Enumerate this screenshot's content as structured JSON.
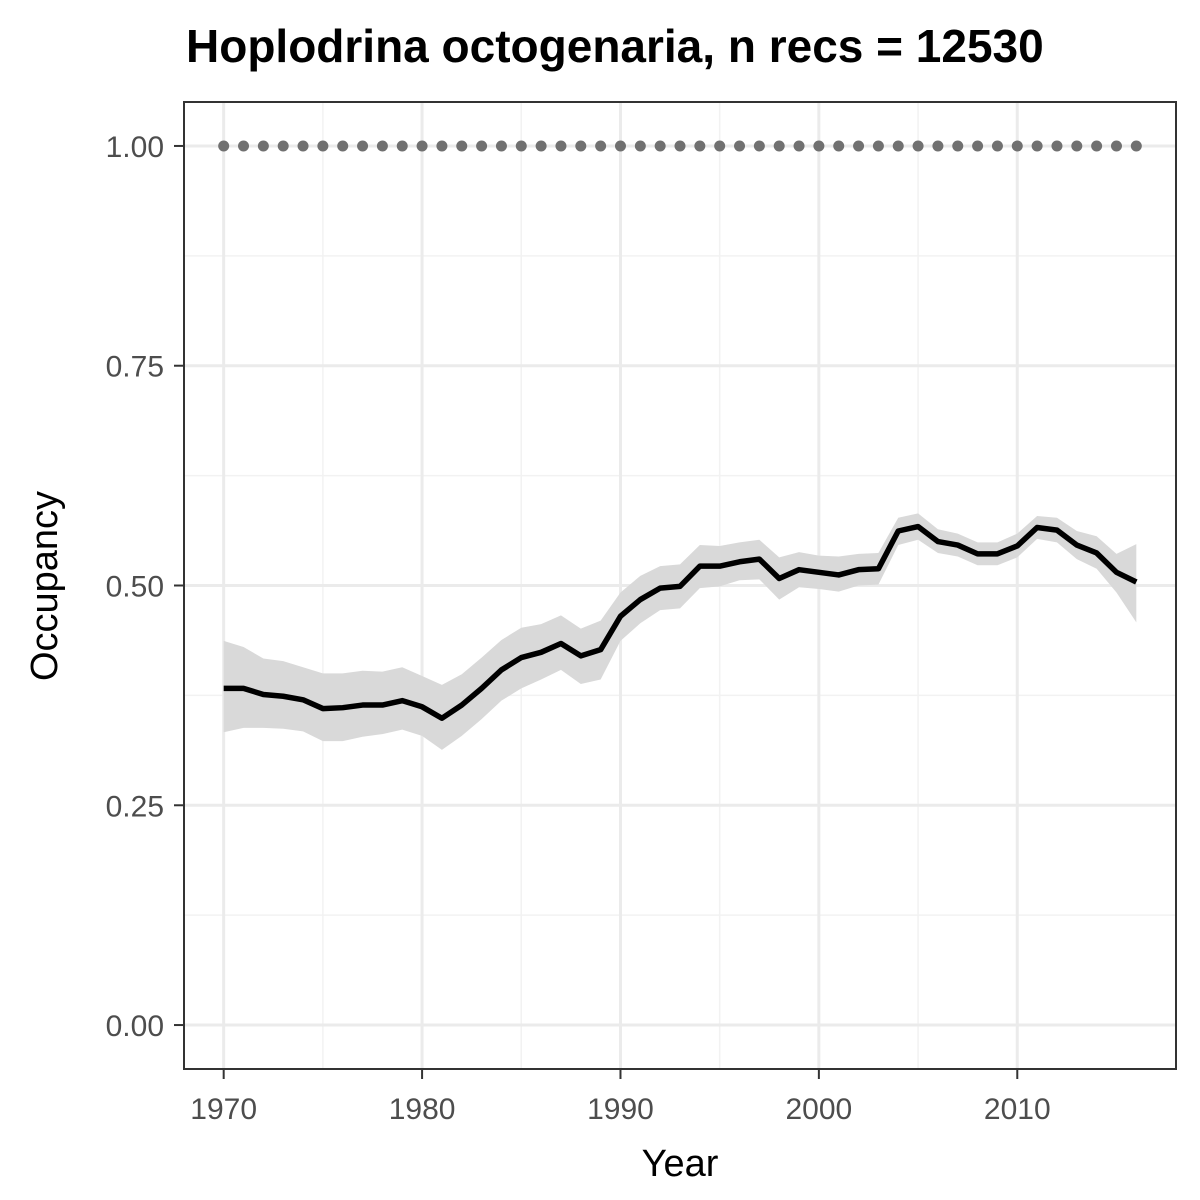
{
  "chart_data": {
    "type": "line",
    "title": "Hoplodrina octogenaria, n recs = 12530",
    "xlabel": "Year",
    "ylabel": "Occupancy",
    "xlim": [
      1968,
      2018
    ],
    "ylim": [
      -0.05,
      1.05
    ],
    "x_ticks": [
      1970,
      1980,
      1990,
      2000,
      2010
    ],
    "x_tick_labels": [
      "1970",
      "1980",
      "1990",
      "2000",
      "2010"
    ],
    "y_ticks": [
      0,
      0.25,
      0.5,
      0.75,
      1.0
    ],
    "y_tick_labels": [
      "0.00",
      "0.25",
      "0.50",
      "0.75",
      "1.00"
    ],
    "grid": true,
    "x": [
      1970,
      1971,
      1972,
      1973,
      1974,
      1975,
      1976,
      1977,
      1978,
      1979,
      1980,
      1981,
      1982,
      1983,
      1984,
      1985,
      1986,
      1987,
      1988,
      1989,
      1990,
      1991,
      1992,
      1993,
      1994,
      1995,
      1996,
      1997,
      1998,
      1999,
      2000,
      2001,
      2002,
      2003,
      2004,
      2005,
      2006,
      2007,
      2008,
      2009,
      2010,
      2011,
      2012,
      2013,
      2014,
      2015,
      2016
    ],
    "series": [
      {
        "values": [
          0.383,
          0.383,
          0.376,
          0.374,
          0.37,
          0.36,
          0.361,
          0.364,
          0.364,
          0.369,
          0.362,
          0.349,
          0.364,
          0.383,
          0.404,
          0.418,
          0.424,
          0.434,
          0.42,
          0.427,
          0.465,
          0.484,
          0.497,
          0.499,
          0.522,
          0.522,
          0.527,
          0.53,
          0.508,
          0.518,
          0.515,
          0.512,
          0.518,
          0.519,
          0.562,
          0.567,
          0.55,
          0.546,
          0.536,
          0.536,
          0.545,
          0.566,
          0.563,
          0.546,
          0.537,
          0.515,
          0.504
        ],
        "lower": [
          0.333,
          0.338,
          0.338,
          0.337,
          0.334,
          0.323,
          0.323,
          0.328,
          0.331,
          0.336,
          0.329,
          0.313,
          0.329,
          0.348,
          0.369,
          0.383,
          0.393,
          0.404,
          0.388,
          0.393,
          0.437,
          0.457,
          0.472,
          0.474,
          0.497,
          0.499,
          0.506,
          0.507,
          0.484,
          0.498,
          0.496,
          0.493,
          0.5,
          0.501,
          0.546,
          0.552,
          0.537,
          0.533,
          0.523,
          0.523,
          0.532,
          0.553,
          0.549,
          0.53,
          0.519,
          0.492,
          0.458
        ],
        "upper": [
          0.437,
          0.43,
          0.417,
          0.414,
          0.407,
          0.4,
          0.4,
          0.403,
          0.402,
          0.407,
          0.397,
          0.387,
          0.399,
          0.418,
          0.438,
          0.452,
          0.456,
          0.466,
          0.451,
          0.46,
          0.492,
          0.511,
          0.522,
          0.524,
          0.546,
          0.545,
          0.549,
          0.552,
          0.532,
          0.538,
          0.534,
          0.533,
          0.536,
          0.537,
          0.577,
          0.582,
          0.564,
          0.559,
          0.549,
          0.549,
          0.559,
          0.579,
          0.577,
          0.562,
          0.556,
          0.536,
          0.547
        ]
      },
      {
        "style": "dotted",
        "values": [
          1,
          1,
          1,
          1,
          1,
          1,
          1,
          1,
          1,
          1,
          1,
          1,
          1,
          1,
          1,
          1,
          1,
          1,
          1,
          1,
          1,
          1,
          1,
          1,
          1,
          1,
          1,
          1,
          1,
          1,
          1,
          1,
          1,
          1,
          1,
          1,
          1,
          1,
          1,
          1,
          1,
          1,
          1,
          1,
          1,
          1,
          1
        ]
      }
    ],
    "colors": {
      "line": "#000000",
      "ribbon": "#d9d9d9",
      "reference": "#707070",
      "grid_major": "#ebebeb",
      "grid_minor": "#f2f2f2",
      "panel_border": "#333333",
      "tick_text": "#4d4d4d"
    }
  }
}
